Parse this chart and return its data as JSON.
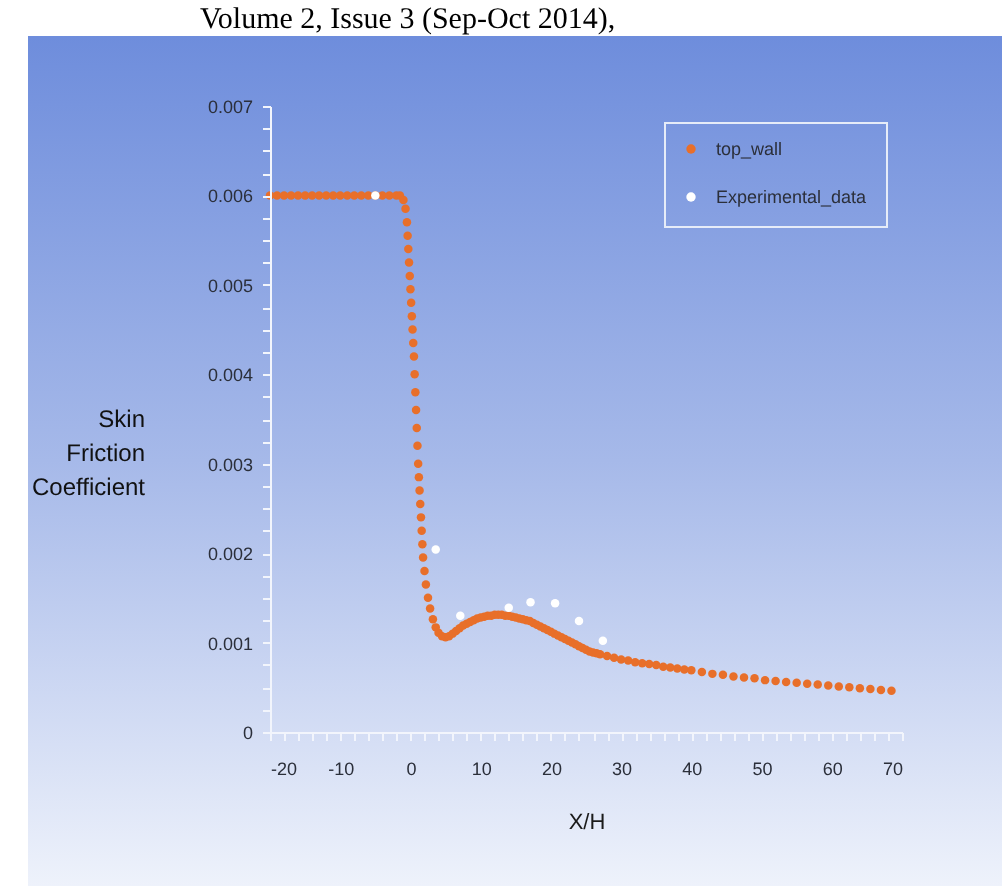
{
  "chart_data": {
    "type": "scatter",
    "annotations": [
      "Volume 2, Issue 3 (Sep-Oct 2014),"
    ],
    "xlabel": "X/H",
    "ylabel": "Skin Friction Coefficient",
    "xlim": [
      -20,
      70
    ],
    "ylim": [
      0,
      0.007
    ],
    "xticks": [
      -20,
      {
        "value": -18,
        "label": null
      },
      {
        "value": -16,
        "label": null
      },
      {
        "value": -14,
        "label": null
      },
      {
        "value": -12,
        "label": null
      },
      -10,
      {
        "value": -8,
        "label": null
      },
      {
        "value": -6,
        "label": null
      },
      {
        "value": -4,
        "label": null
      },
      {
        "value": -2,
        "label": null
      },
      0,
      {
        "value": 2,
        "label": null
      },
      {
        "value": 4,
        "label": null
      },
      {
        "value": 6,
        "label": null
      },
      {
        "value": 8,
        "label": null
      },
      10,
      {
        "value": 12,
        "label": null
      },
      {
        "value": 14,
        "label": null
      },
      {
        "value": 16,
        "label": null
      },
      {
        "value": 18,
        "label": null
      },
      20,
      {
        "value": 22,
        "label": null
      },
      {
        "value": 24,
        "label": null
      },
      {
        "value": 26,
        "label": null
      },
      {
        "value": 28,
        "label": null
      },
      30,
      {
        "value": 32,
        "label": null
      },
      {
        "value": 34,
        "label": null
      },
      {
        "value": 36,
        "label": null
      },
      {
        "value": 38,
        "label": null
      },
      40,
      {
        "value": 42,
        "label": null
      },
      {
        "value": 44,
        "label": null
      },
      {
        "value": 46,
        "label": null
      },
      {
        "value": 48,
        "label": null
      },
      50,
      {
        "value": 52,
        "label": null
      },
      {
        "value": 54,
        "label": null
      },
      {
        "value": 56,
        "label": null
      },
      {
        "value": 58,
        "label": null
      },
      60,
      {
        "value": 62,
        "label": null
      },
      {
        "value": 64,
        "label": null
      },
      {
        "value": 66,
        "label": null
      },
      {
        "value": 68,
        "label": null
      },
      70
    ],
    "yticks": [
      0,
      {
        "value": 0.00025,
        "label": null
      },
      {
        "value": 0.0005,
        "label": null
      },
      {
        "value": 0.00075,
        "label": null
      },
      0.001,
      {
        "value": 0.00125,
        "label": null
      },
      {
        "value": 0.0015,
        "label": null
      },
      {
        "value": 0.00175,
        "label": null
      },
      0.002,
      {
        "value": 0.00225,
        "label": null
      },
      {
        "value": 0.0025,
        "label": null
      },
      {
        "value": 0.00275,
        "label": null
      },
      0.003,
      {
        "value": 0.00325,
        "label": null
      },
      {
        "value": 0.0035,
        "label": null
      },
      {
        "value": 0.00375,
        "label": null
      },
      0.004,
      {
        "value": 0.00425,
        "label": null
      },
      {
        "value": 0.0045,
        "label": null
      },
      {
        "value": 0.00475,
        "label": null
      },
      0.005,
      {
        "value": 0.00525,
        "label": null
      },
      {
        "value": 0.0055,
        "label": null
      },
      {
        "value": 0.00575,
        "label": null
      },
      0.006,
      {
        "value": 0.00625,
        "label": null
      },
      {
        "value": 0.0065,
        "label": null
      },
      {
        "value": 0.00675,
        "label": null
      },
      0.007
    ],
    "legend": "top right",
    "marker": "circle",
    "series": [
      {
        "name": "top_wall",
        "color": "#e86f2a",
        "x": [
          -20,
          -19,
          -18,
          -17,
          -16,
          -15,
          -14,
          -13,
          -12,
          -11,
          -10,
          -9,
          -8,
          -7,
          -6,
          -5,
          -4,
          -3,
          -2,
          -1.5,
          -1.0,
          -0.7,
          -0.5,
          -0.4,
          -0.3,
          -0.2,
          -0.1,
          0,
          0.1,
          0.2,
          0.3,
          0.4,
          0.5,
          0.6,
          0.7,
          0.8,
          0.9,
          1.0,
          1.1,
          1.2,
          1.3,
          1.4,
          1.5,
          1.6,
          1.7,
          1.8,
          2.0,
          2.2,
          2.5,
          2.8,
          3.2,
          3.6,
          4.0,
          4.5,
          5.0,
          5.5,
          6.0,
          6.5,
          7.0,
          7.5,
          8.0,
          8.5,
          9.0,
          9.5,
          10,
          10.5,
          11,
          11.5,
          12,
          12.5,
          13,
          13.5,
          14,
          14.5,
          15,
          15.5,
          16,
          16.5,
          17,
          17.5,
          18,
          18.5,
          19,
          19.5,
          20,
          20.5,
          21,
          21.5,
          22,
          22.5,
          23,
          23.5,
          24,
          24.5,
          25,
          25.5,
          26,
          26.5,
          27,
          28,
          29,
          30,
          31,
          32,
          33,
          34,
          35,
          36,
          37,
          38,
          39,
          40,
          41.5,
          43,
          44.5,
          46,
          47.5,
          49,
          50.5,
          52,
          53.5,
          55,
          56.5,
          58,
          59.5,
          61,
          62.5,
          64,
          65.5,
          67,
          68.5
        ],
        "values": [
          0.006,
          0.006,
          0.006,
          0.006,
          0.006,
          0.006,
          0.006,
          0.006,
          0.006,
          0.006,
          0.006,
          0.006,
          0.006,
          0.006,
          0.006,
          0.006,
          0.006,
          0.006,
          0.006,
          0.006,
          0.00595,
          0.00585,
          0.0057,
          0.00555,
          0.0054,
          0.00525,
          0.0051,
          0.00495,
          0.0048,
          0.00465,
          0.0045,
          0.00435,
          0.0042,
          0.004,
          0.0038,
          0.0036,
          0.0034,
          0.0032,
          0.003,
          0.00285,
          0.0027,
          0.00255,
          0.0024,
          0.00225,
          0.0021,
          0.00195,
          0.0018,
          0.00165,
          0.0015,
          0.00138,
          0.00126,
          0.00117,
          0.00111,
          0.00107,
          0.00106,
          0.00107,
          0.0011,
          0.00113,
          0.00116,
          0.00119,
          0.00121,
          0.00123,
          0.00125,
          0.00127,
          0.00128,
          0.00129,
          0.0013,
          0.0013,
          0.00131,
          0.00131,
          0.00131,
          0.0013,
          0.0013,
          0.00129,
          0.00128,
          0.00127,
          0.00126,
          0.00125,
          0.00124,
          0.00122,
          0.0012,
          0.00118,
          0.00116,
          0.00114,
          0.00112,
          0.0011,
          0.00108,
          0.00106,
          0.00104,
          0.00102,
          0.001,
          0.00098,
          0.00096,
          0.00094,
          0.00092,
          0.0009,
          0.00089,
          0.00088,
          0.00087,
          0.00085,
          0.00083,
          0.00081,
          0.0008,
          0.00078,
          0.00077,
          0.00076,
          0.00075,
          0.00073,
          0.00072,
          0.00071,
          0.0007,
          0.00069,
          0.00067,
          0.00065,
          0.00064,
          0.00062,
          0.00061,
          0.0006,
          0.00058,
          0.00057,
          0.00056,
          0.00055,
          0.00054,
          0.00053,
          0.00052,
          0.00051,
          0.0005,
          0.00049,
          0.00048,
          0.00047,
          0.00046
        ]
      },
      {
        "name": "Experimental_data",
        "color": "#ffffff",
        "x": [
          -5,
          3.6,
          7.1,
          14,
          17.1,
          20.6,
          24,
          27.4
        ],
        "values": [
          0.006,
          0.00204,
          0.0013,
          0.00139,
          0.00145,
          0.00144,
          0.00124,
          0.00102
        ]
      }
    ]
  }
}
